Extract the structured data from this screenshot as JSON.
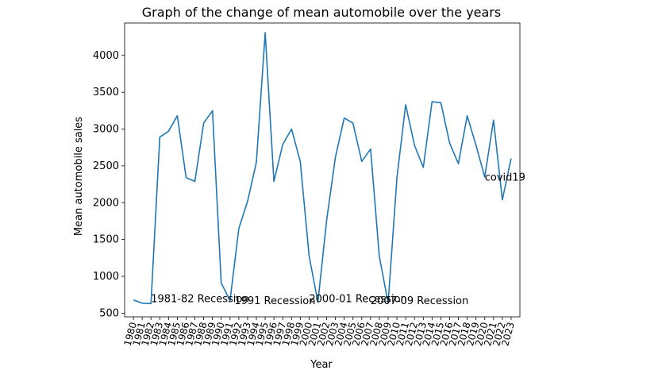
{
  "chart_data": {
    "type": "line",
    "title": "Graph of the change of mean automobile over the years",
    "xlabel": "Year",
    "ylabel": "Mean automobile sales",
    "xlim": [
      1979,
      2024
    ],
    "ylim": [
      450,
      4440
    ],
    "yticks": [
      500,
      1000,
      1500,
      2000,
      2500,
      3000,
      3500,
      4000
    ],
    "grid": false,
    "line_color": "#1f77b4",
    "x": [
      1980,
      1981,
      1982,
      1983,
      1984,
      1985,
      1986,
      1987,
      1988,
      1989,
      1990,
      1991,
      1992,
      1993,
      1994,
      1995,
      1996,
      1997,
      1998,
      1999,
      2000,
      2001,
      2002,
      2003,
      2004,
      2005,
      2006,
      2007,
      2008,
      2009,
      2010,
      2011,
      2012,
      2013,
      2014,
      2015,
      2016,
      2017,
      2018,
      2019,
      2020,
      2021,
      2022,
      2023
    ],
    "series": [
      {
        "values": [
          680,
          635,
          630,
          2890,
          2970,
          3180,
          2340,
          2290,
          3080,
          3250,
          910,
          670,
          1650,
          2020,
          2550,
          4310,
          2290,
          2790,
          3000,
          2560,
          1280,
          650,
          1760,
          2620,
          3150,
          3080,
          2560,
          2730,
          1270,
          640,
          2340,
          3330,
          2780,
          2480,
          3370,
          3360,
          2810,
          2530,
          3180,
          2780,
          2350,
          3120,
          2040,
          2600
        ]
      }
    ],
    "annotations": [
      {
        "text": "1981-82 Recession",
        "x": 1982,
        "y": 650
      },
      {
        "text": "1991 Recession",
        "x": 1991.5,
        "y": 620
      },
      {
        "text": "2000-01 Recession",
        "x": 2000,
        "y": 650
      },
      {
        "text": "2007-09 Recession",
        "x": 2007,
        "y": 620
      },
      {
        "text": "covid19",
        "x": 2020,
        "y": 2300
      }
    ]
  }
}
